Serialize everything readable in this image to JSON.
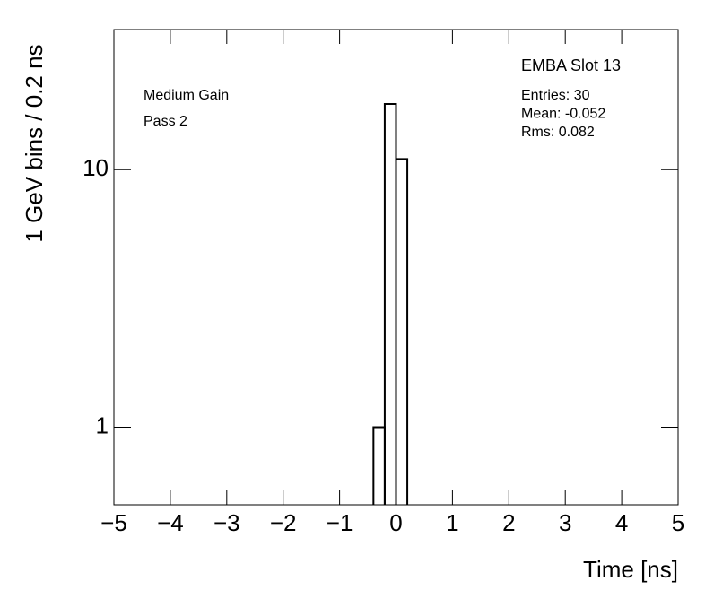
{
  "chart_data": {
    "type": "histogram",
    "x_label": "Time [ns]",
    "y_label": "1 GeV bins / 0.2 ns",
    "bins": [
      -0.4,
      -0.2,
      0,
      0.2
    ],
    "counts": [
      1,
      18,
      11
    ],
    "color": "#000000",
    "xlim": [
      -5,
      5
    ],
    "xticks": [
      {
        "value": -5,
        "label": "−5"
      },
      {
        "value": -4,
        "label": "−4"
      },
      {
        "value": -3,
        "label": "−3"
      },
      {
        "value": -2,
        "label": "−2"
      },
      {
        "value": -1,
        "label": "−1"
      },
      0,
      1,
      2,
      3,
      4,
      5
    ],
    "ylim": [
      0.5,
      35
    ],
    "yticks": [
      1,
      10
    ],
    "log_y": true,
    "stats_title": "EMBA Slot 13",
    "stats": [
      "Entries: 30",
      "Mean: -0.052",
      "Rms: 0.082"
    ],
    "annotations": [
      "Medium Gain",
      "Pass 2"
    ]
  }
}
